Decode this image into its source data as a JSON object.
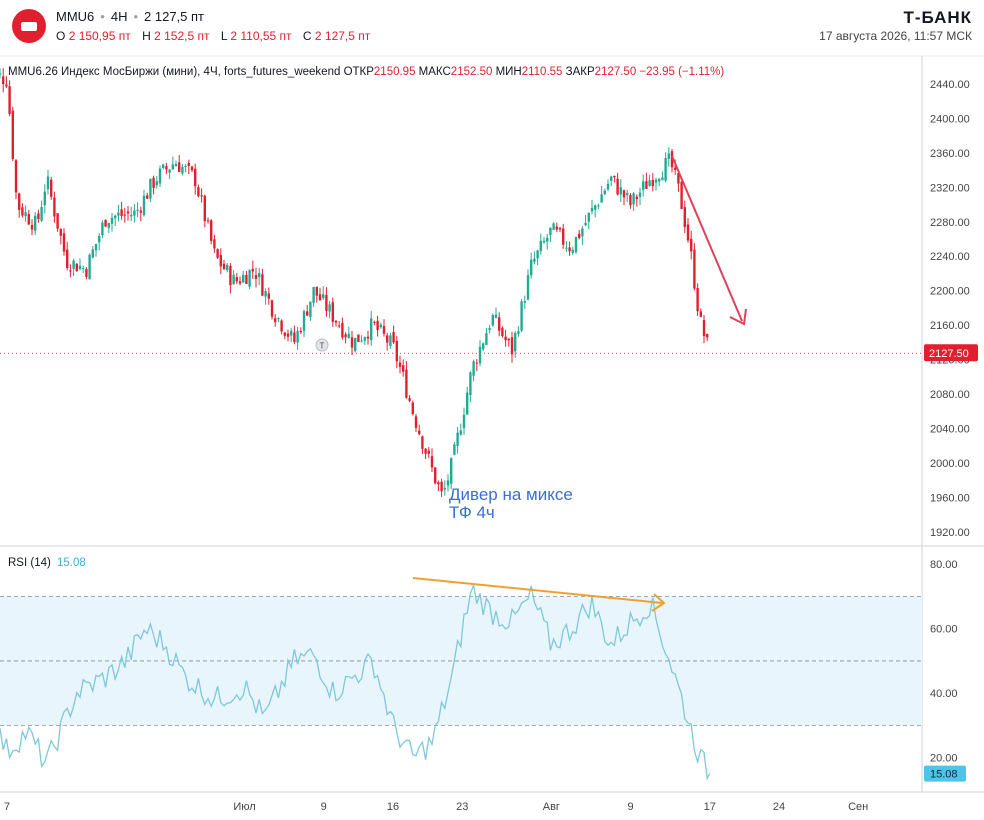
{
  "header": {
    "symbol": "MMU6",
    "timeframe": "4H",
    "last_price": "2 127,5 пт",
    "ohlc": [
      {
        "label": "O",
        "value": "2 150,95 пт"
      },
      {
        "label": "H",
        "value": "2 152,5 пт"
      },
      {
        "label": "L",
        "value": "2 110,55 пт"
      },
      {
        "label": "C",
        "value": "2 127,5 пт"
      }
    ],
    "brand": "Т-БАНК",
    "datetime": "17 августа 2026, 11:57 МСК"
  },
  "colors": {
    "up": "#22ab94",
    "down": "#e0202e",
    "rsi_line": "#7ec8d9",
    "rsi_band": "#e8f5fc",
    "orange_arrow": "#f0a030",
    "red_arrow": "#e0405a",
    "annotation": "#3a6fd0"
  },
  "chart_data": [
    {
      "type": "candlestick",
      "info": {
        "name": "MMU2026 Индекс МосБиржи (мини), 4Ч, forts_futures_weekend",
        "name_visible": "MMU6.26 Индекс МосБиржи (мини), 4Ч, forts_futures_weekend",
        "open_label": "ОТКР",
        "open": "2150.95",
        "high_label": "МАКС",
        "high": "2152.50",
        "low_label": "МИН",
        "low": "2110.55",
        "close_label": "ЗАКР",
        "close": "2127.50",
        "change": "−23.95 (−1.11%)"
      },
      "ylim": [
        1905,
        2470
      ],
      "y_ticks": [
        "2440.00",
        "2400.00",
        "2360.00",
        "2320.00",
        "2280.00",
        "2240.00",
        "2200.00",
        "2160.00",
        "2120.00",
        "2080.00",
        "2040.00",
        "2000.00",
        "1960.00",
        "1920.00"
      ],
      "last_price_label": "2127.50",
      "last_price": 2127.5,
      "x_ticks": [
        "7",
        "Июл",
        "9",
        "16",
        "23",
        "Авг",
        "9",
        "17",
        "24",
        "Сен"
      ],
      "x_tick_dates": [
        "2026-06-07",
        "2026-07-01",
        "2026-07-09",
        "2026-07-16",
        "2026-07-23",
        "2026-08-01",
        "2026-08-09",
        "2026-08-17",
        "2026-08-24",
        "2026-09-01"
      ],
      "series_close": [
        [
          "2026-06-05",
          2455
        ],
        [
          "2026-06-07",
          2445
        ],
        [
          "2026-06-08",
          2300
        ],
        [
          "2026-06-10",
          2275
        ],
        [
          "2026-06-11",
          2330
        ],
        [
          "2026-06-13",
          2235
        ],
        [
          "2026-06-15",
          2225
        ],
        [
          "2026-06-17",
          2285
        ],
        [
          "2026-06-20",
          2290
        ],
        [
          "2026-06-22",
          2330
        ],
        [
          "2026-06-24",
          2350
        ],
        [
          "2026-06-26",
          2330
        ],
        [
          "2026-06-28",
          2240
        ],
        [
          "2026-06-30",
          2210
        ],
        [
          "2026-07-02",
          2225
        ],
        [
          "2026-07-04",
          2175
        ],
        [
          "2026-07-06",
          2140
        ],
        [
          "2026-07-08",
          2200
        ],
        [
          "2026-07-10",
          2170
        ],
        [
          "2026-07-12",
          2140
        ],
        [
          "2026-07-14",
          2160
        ],
        [
          "2026-07-16",
          2135
        ],
        [
          "2026-07-17",
          2100
        ],
        [
          "2026-07-18",
          2060
        ],
        [
          "2026-07-20",
          1990
        ],
        [
          "2026-07-21",
          1960
        ],
        [
          "2026-07-22",
          2000
        ],
        [
          "2026-07-24",
          2110
        ],
        [
          "2026-07-26",
          2170
        ],
        [
          "2026-07-28",
          2130
        ],
        [
          "2026-07-30",
          2230
        ],
        [
          "2026-08-01",
          2270
        ],
        [
          "2026-08-03",
          2250
        ],
        [
          "2026-08-05",
          2290
        ],
        [
          "2026-08-07",
          2330
        ],
        [
          "2026-08-09",
          2300
        ],
        [
          "2026-08-11",
          2330
        ],
        [
          "2026-08-13",
          2350
        ],
        [
          "2026-08-14",
          2310
        ],
        [
          "2026-08-15",
          2250
        ],
        [
          "2026-08-16",
          2165
        ],
        [
          "2026-08-17",
          2127.5
        ]
      ],
      "annotations": [
        {
          "text": "Дивер на миксе",
          "line2": "ТФ 4ч"
        }
      ]
    },
    {
      "type": "line",
      "title": "RSI (14)",
      "current_value": "15.08",
      "ylim": [
        10,
        85
      ],
      "y_ticks": [
        "80.00",
        "60.00",
        "40.00",
        "20.00"
      ],
      "levels": [
        70,
        50,
        30
      ],
      "values": [
        [
          "2026-06-05",
          35
        ],
        [
          "2026-06-07",
          22
        ],
        [
          "2026-06-09",
          28
        ],
        [
          "2026-06-11",
          18
        ],
        [
          "2026-06-14",
          40
        ],
        [
          "2026-06-17",
          45
        ],
        [
          "2026-06-19",
          50
        ],
        [
          "2026-06-21",
          60
        ],
        [
          "2026-06-23",
          55
        ],
        [
          "2026-06-25",
          45
        ],
        [
          "2026-06-28",
          38
        ],
        [
          "2026-07-01",
          42
        ],
        [
          "2026-07-03",
          32
        ],
        [
          "2026-07-06",
          50
        ],
        [
          "2026-07-08",
          52
        ],
        [
          "2026-07-10",
          40
        ],
        [
          "2026-07-12",
          45
        ],
        [
          "2026-07-14",
          50
        ],
        [
          "2026-07-16",
          30
        ],
        [
          "2026-07-18",
          20
        ],
        [
          "2026-07-20",
          25
        ],
        [
          "2026-07-21",
          35
        ],
        [
          "2026-07-22",
          45
        ],
        [
          "2026-07-23",
          60
        ],
        [
          "2026-07-24",
          72
        ],
        [
          "2026-07-26",
          65
        ],
        [
          "2026-07-28",
          62
        ],
        [
          "2026-07-30",
          70
        ],
        [
          "2026-08-01",
          55
        ],
        [
          "2026-08-03",
          60
        ],
        [
          "2026-08-05",
          68
        ],
        [
          "2026-08-07",
          55
        ],
        [
          "2026-08-09",
          62
        ],
        [
          "2026-08-11",
          68
        ],
        [
          "2026-08-13",
          50
        ],
        [
          "2026-08-14",
          40
        ],
        [
          "2026-08-15",
          30
        ],
        [
          "2026-08-16",
          20
        ],
        [
          "2026-08-17",
          15.08
        ]
      ]
    }
  ],
  "tool_badge": "T"
}
